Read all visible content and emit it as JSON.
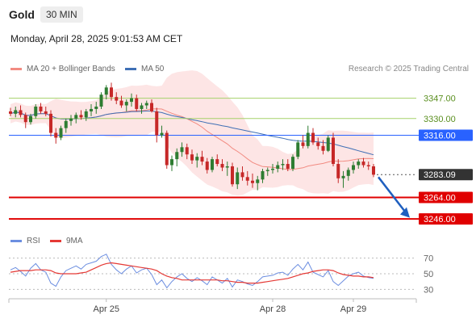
{
  "header": {
    "instrument": "Gold",
    "timeframe": "30 MIN",
    "datetime": "Monday, April 28, 2025 9:01:53 AM CET"
  },
  "credit": "Research © 2025 Trading Central",
  "colors": {
    "up": "#2e7d32",
    "down": "#c62828",
    "ma20": "#f28b82",
    "ma50": "#3f6fb5",
    "band": "#fde0e0",
    "resistance": "#a5d16a",
    "current": "#2962ff",
    "support": "#e00000",
    "rsi": "#6c8ee0",
    "rsi_ma": "#e53935"
  },
  "chart_data": [
    {
      "type": "candlestick",
      "legend": [
        {
          "name": "MA 20 + Bollinger Bands",
          "color": "#f28b82"
        },
        {
          "name": "MA 50",
          "color": "#3f6fb5"
        }
      ],
      "x_ticks": [
        "Apr 25",
        "Apr 28",
        "Apr 29"
      ],
      "ylim": [
        3240,
        3365
      ],
      "levels": [
        {
          "label": "3347.00",
          "value": 3347,
          "kind": "resistance"
        },
        {
          "label": "3330.00",
          "value": 3330,
          "kind": "resistance"
        },
        {
          "label": "3316.00",
          "value": 3316,
          "kind": "current"
        },
        {
          "label": "3283.09",
          "value": 3283.09,
          "kind": "last"
        },
        {
          "label": "3264.00",
          "value": 3264,
          "kind": "support"
        },
        {
          "label": "3246.00",
          "value": 3246,
          "kind": "support"
        }
      ],
      "candles": [
        [
          3336,
          3339,
          3332,
          3334
        ],
        [
          3334,
          3340,
          3331,
          3337
        ],
        [
          3337,
          3341,
          3331,
          3333
        ],
        [
          3333,
          3335,
          3322,
          3327
        ],
        [
          3327,
          3334,
          3325,
          3332
        ],
        [
          3332,
          3342,
          3330,
          3340
        ],
        [
          3340,
          3343,
          3334,
          3336
        ],
        [
          3336,
          3340,
          3332,
          3334
        ],
        [
          3334,
          3337,
          3315,
          3318
        ],
        [
          3318,
          3322,
          3309,
          3314
        ],
        [
          3314,
          3324,
          3312,
          3322
        ],
        [
          3322,
          3330,
          3318,
          3328
        ],
        [
          3328,
          3333,
          3324,
          3330
        ],
        [
          3330,
          3335,
          3326,
          3333
        ],
        [
          3333,
          3337,
          3329,
          3331
        ],
        [
          3331,
          3338,
          3328,
          3336
        ],
        [
          3336,
          3342,
          3332,
          3338
        ],
        [
          3338,
          3344,
          3334,
          3340
        ],
        [
          3340,
          3352,
          3338,
          3350
        ],
        [
          3350,
          3358,
          3346,
          3356
        ],
        [
          3356,
          3360,
          3345,
          3348
        ],
        [
          3348,
          3352,
          3342,
          3345
        ],
        [
          3345,
          3349,
          3339,
          3341
        ],
        [
          3341,
          3346,
          3336,
          3344
        ],
        [
          3344,
          3351,
          3340,
          3347
        ],
        [
          3347,
          3350,
          3336,
          3338
        ],
        [
          3338,
          3343,
          3334,
          3341
        ],
        [
          3341,
          3345,
          3338,
          3343
        ],
        [
          3343,
          3346,
          3335,
          3336
        ],
        [
          3336,
          3339,
          3310,
          3316
        ],
        [
          3316,
          3324,
          3314,
          3318
        ],
        [
          3318,
          3320,
          3288,
          3291
        ],
        [
          3291,
          3299,
          3286,
          3296
        ],
        [
          3296,
          3305,
          3290,
          3302
        ],
        [
          3302,
          3310,
          3298,
          3306
        ],
        [
          3306,
          3309,
          3296,
          3300
        ],
        [
          3300,
          3304,
          3292,
          3295
        ],
        [
          3295,
          3301,
          3289,
          3298
        ],
        [
          3298,
          3303,
          3291,
          3294
        ],
        [
          3294,
          3297,
          3284,
          3287
        ],
        [
          3287,
          3298,
          3285,
          3296
        ],
        [
          3296,
          3300,
          3290,
          3292
        ],
        [
          3292,
          3296,
          3286,
          3289
        ],
        [
          3289,
          3294,
          3282,
          3290
        ],
        [
          3290,
          3293,
          3273,
          3275
        ],
        [
          3275,
          3289,
          3271,
          3285
        ],
        [
          3285,
          3290,
          3278,
          3281
        ],
        [
          3281,
          3286,
          3274,
          3278
        ],
        [
          3278,
          3284,
          3272,
          3276
        ],
        [
          3276,
          3282,
          3270,
          3279
        ],
        [
          3279,
          3288,
          3276,
          3286
        ],
        [
          3286,
          3289,
          3282,
          3287
        ],
        [
          3287,
          3292,
          3284,
          3288
        ],
        [
          3288,
          3294,
          3285,
          3291
        ],
        [
          3291,
          3296,
          3287,
          3292
        ],
        [
          3292,
          3296,
          3286,
          3288
        ],
        [
          3288,
          3300,
          3286,
          3298
        ],
        [
          3298,
          3312,
          3296,
          3310
        ],
        [
          3310,
          3316,
          3305,
          3307
        ],
        [
          3307,
          3324,
          3305,
          3318
        ],
        [
          3318,
          3322,
          3308,
          3310
        ],
        [
          3310,
          3314,
          3304,
          3307
        ],
        [
          3307,
          3312,
          3300,
          3303
        ],
        [
          3303,
          3316,
          3302,
          3314
        ],
        [
          3314,
          3318,
          3290,
          3292
        ],
        [
          3292,
          3296,
          3276,
          3280
        ],
        [
          3280,
          3286,
          3272,
          3282
        ],
        [
          3282,
          3289,
          3278,
          3287
        ],
        [
          3287,
          3294,
          3284,
          3291
        ],
        [
          3291,
          3296,
          3288,
          3294
        ],
        [
          3294,
          3297,
          3289,
          3291
        ],
        [
          3291,
          3294,
          3287,
          3290
        ],
        [
          3290,
          3292,
          3281,
          3283
        ]
      ]
    },
    {
      "type": "line",
      "legend": [
        {
          "name": "RSI",
          "color": "#6c8ee0"
        },
        {
          "name": "9MA",
          "color": "#e53935"
        }
      ],
      "y_ticks": [
        70,
        50,
        30
      ],
      "ylim": [
        20,
        80
      ],
      "series": [
        {
          "name": "RSI",
          "values": [
            55,
            58,
            53,
            47,
            57,
            63,
            55,
            52,
            38,
            34,
            46,
            54,
            57,
            60,
            56,
            62,
            64,
            66,
            72,
            75,
            62,
            55,
            50,
            56,
            60,
            51,
            55,
            57,
            49,
            36,
            42,
            32,
            40,
            46,
            50,
            44,
            40,
            45,
            41,
            36,
            46,
            42,
            38,
            44,
            33,
            42,
            40,
            37,
            35,
            40,
            46,
            47,
            48,
            51,
            52,
            48,
            56,
            62,
            55,
            65,
            52,
            49,
            46,
            54,
            40,
            35,
            41,
            47,
            50,
            52,
            47,
            45,
            44
          ]
        },
        {
          "name": "9MA",
          "values": [
            52,
            53,
            54,
            54,
            54,
            55,
            55,
            55,
            54,
            51,
            50,
            50,
            50,
            50,
            51,
            52,
            55,
            58,
            61,
            63,
            64,
            63,
            62,
            61,
            60,
            59,
            58,
            57,
            56,
            54,
            50,
            47,
            45,
            44,
            42,
            42,
            42,
            42,
            42,
            42,
            42,
            42,
            41,
            41,
            40,
            39,
            39,
            38,
            38,
            38,
            39,
            40,
            41,
            42,
            43,
            44,
            46,
            48,
            50,
            51,
            53,
            54,
            55,
            55,
            54,
            51,
            49,
            48,
            47,
            47,
            46,
            46,
            45
          ]
        }
      ]
    }
  ]
}
